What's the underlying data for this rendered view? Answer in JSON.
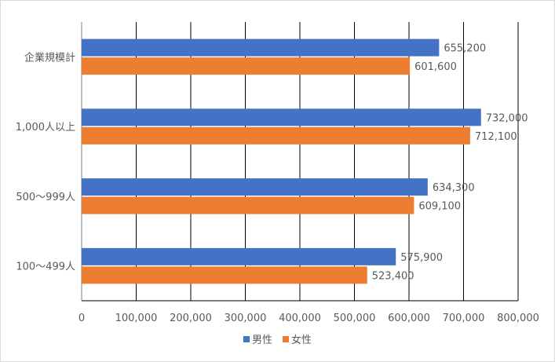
{
  "chart_data": {
    "type": "bar",
    "orientation": "horizontal",
    "title": "",
    "xlabel": "",
    "ylabel": "",
    "categories": [
      "企業規模計",
      "1,000人以上",
      "500～999人",
      "100～499人"
    ],
    "series": [
      {
        "name": "男性",
        "color": "#4472C4",
        "values": [
          655200,
          732000,
          634300,
          575900
        ],
        "labels": [
          "655,200",
          "732,000",
          "634,300",
          "575,900"
        ]
      },
      {
        "name": "女性",
        "color": "#ED7D31",
        "values": [
          601600,
          712100,
          609100,
          523400
        ],
        "labels": [
          "601,600",
          "712,100",
          "609,100",
          "523,400"
        ]
      }
    ],
    "xlim": [
      0,
      800000
    ],
    "xticks": [
      0,
      100000,
      200000,
      300000,
      400000,
      500000,
      600000,
      700000,
      800000
    ],
    "xtick_labels": [
      "0",
      "100,000",
      "200,000",
      "300,000",
      "400,000",
      "500,000",
      "600,000",
      "700,000",
      "800,000"
    ],
    "grid": true,
    "legend_position": "bottom"
  }
}
